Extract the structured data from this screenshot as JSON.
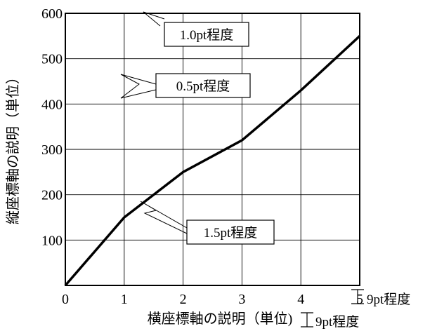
{
  "chart_data": {
    "type": "line",
    "x": [
      0,
      1,
      2,
      3,
      4,
      5
    ],
    "series": [
      {
        "values": [
          0,
          150,
          250,
          320,
          430,
          550
        ]
      }
    ],
    "xlim": [
      0,
      5
    ],
    "ylim": [
      0,
      600
    ],
    "x_ticks": [
      "0",
      "1",
      "2",
      "3",
      "4",
      "5"
    ],
    "y_ticks": [
      "100",
      "200",
      "300",
      "400",
      "500",
      "600"
    ],
    "xlabel": "横座標軸の説明（単位)",
    "ylabel": "縦座標軸の説明（単位）",
    "grid": true,
    "annotations": [
      {
        "text": "1.0pt程度",
        "target": "frame"
      },
      {
        "text": "0.5pt程度",
        "target": "gridline"
      },
      {
        "text": "1.5pt程度",
        "target": "data-line"
      }
    ],
    "tick_font_note": "9pt程度",
    "label_font_note": "9pt程度"
  }
}
